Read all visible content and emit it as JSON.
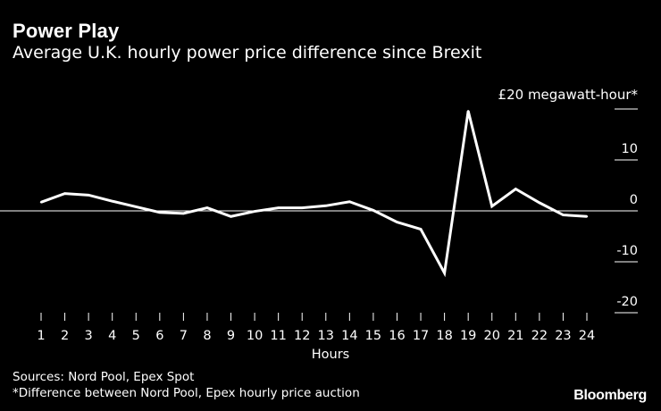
{
  "chart_data": {
    "type": "line",
    "title": "Power Play",
    "subtitle": "Average U.K. hourly power price difference since Brexit",
    "unit_label": "£20 megawatt-hour*",
    "xlabel": "Hours",
    "ylabel": "£ megawatt-hour",
    "x": [
      1,
      2,
      3,
      4,
      5,
      6,
      7,
      8,
      9,
      10,
      11,
      12,
      13,
      14,
      15,
      16,
      17,
      18,
      19,
      20,
      21,
      22,
      23,
      24
    ],
    "series": [
      {
        "name": "Price difference",
        "color": "#ffffff",
        "values": [
          1.7,
          3.4,
          3.1,
          1.9,
          0.8,
          -0.3,
          -0.5,
          0.6,
          -1.1,
          -0.1,
          0.6,
          0.6,
          1.0,
          1.8,
          0.1,
          -2.2,
          -3.6,
          -12.2,
          19.6,
          0.9,
          4.3,
          1.6,
          -0.8,
          -1.1
        ]
      }
    ],
    "y_ticks": [
      20,
      10,
      0,
      -10,
      -20
    ],
    "y_tick_labels": [
      "",
      "10",
      "0",
      "-10",
      "-20"
    ],
    "ylim": [
      -20,
      20
    ],
    "xlim": [
      1,
      24
    ],
    "zero_line": true,
    "grid": false
  },
  "footer": {
    "sources": "Sources: Nord Pool, Epex Spot",
    "note": "*Difference between Nord Pool, Epex hourly price auction",
    "brand": "Bloomberg"
  }
}
